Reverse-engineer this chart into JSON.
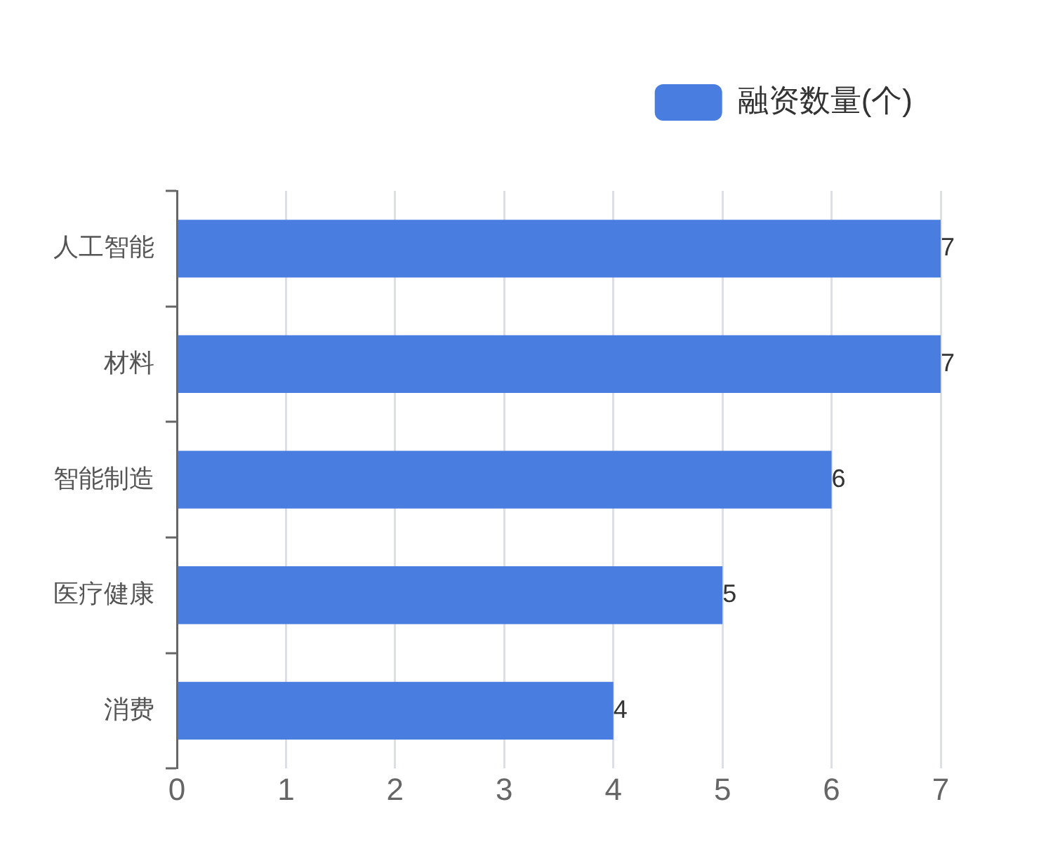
{
  "chart_data": {
    "type": "bar",
    "orientation": "horizontal",
    "categories": [
      "人工智能",
      "材料",
      "智能制造",
      "医疗健康",
      "消费"
    ],
    "series": [
      {
        "name": "融资数量(个)",
        "color": "#4a7de0",
        "values": [
          7,
          7,
          6,
          5,
          4
        ]
      }
    ],
    "xlim": [
      0,
      7
    ],
    "xticks": [
      0,
      1,
      2,
      3,
      4,
      5,
      6,
      7
    ],
    "grid": "x",
    "legend": "top right",
    "data_labels": true
  }
}
